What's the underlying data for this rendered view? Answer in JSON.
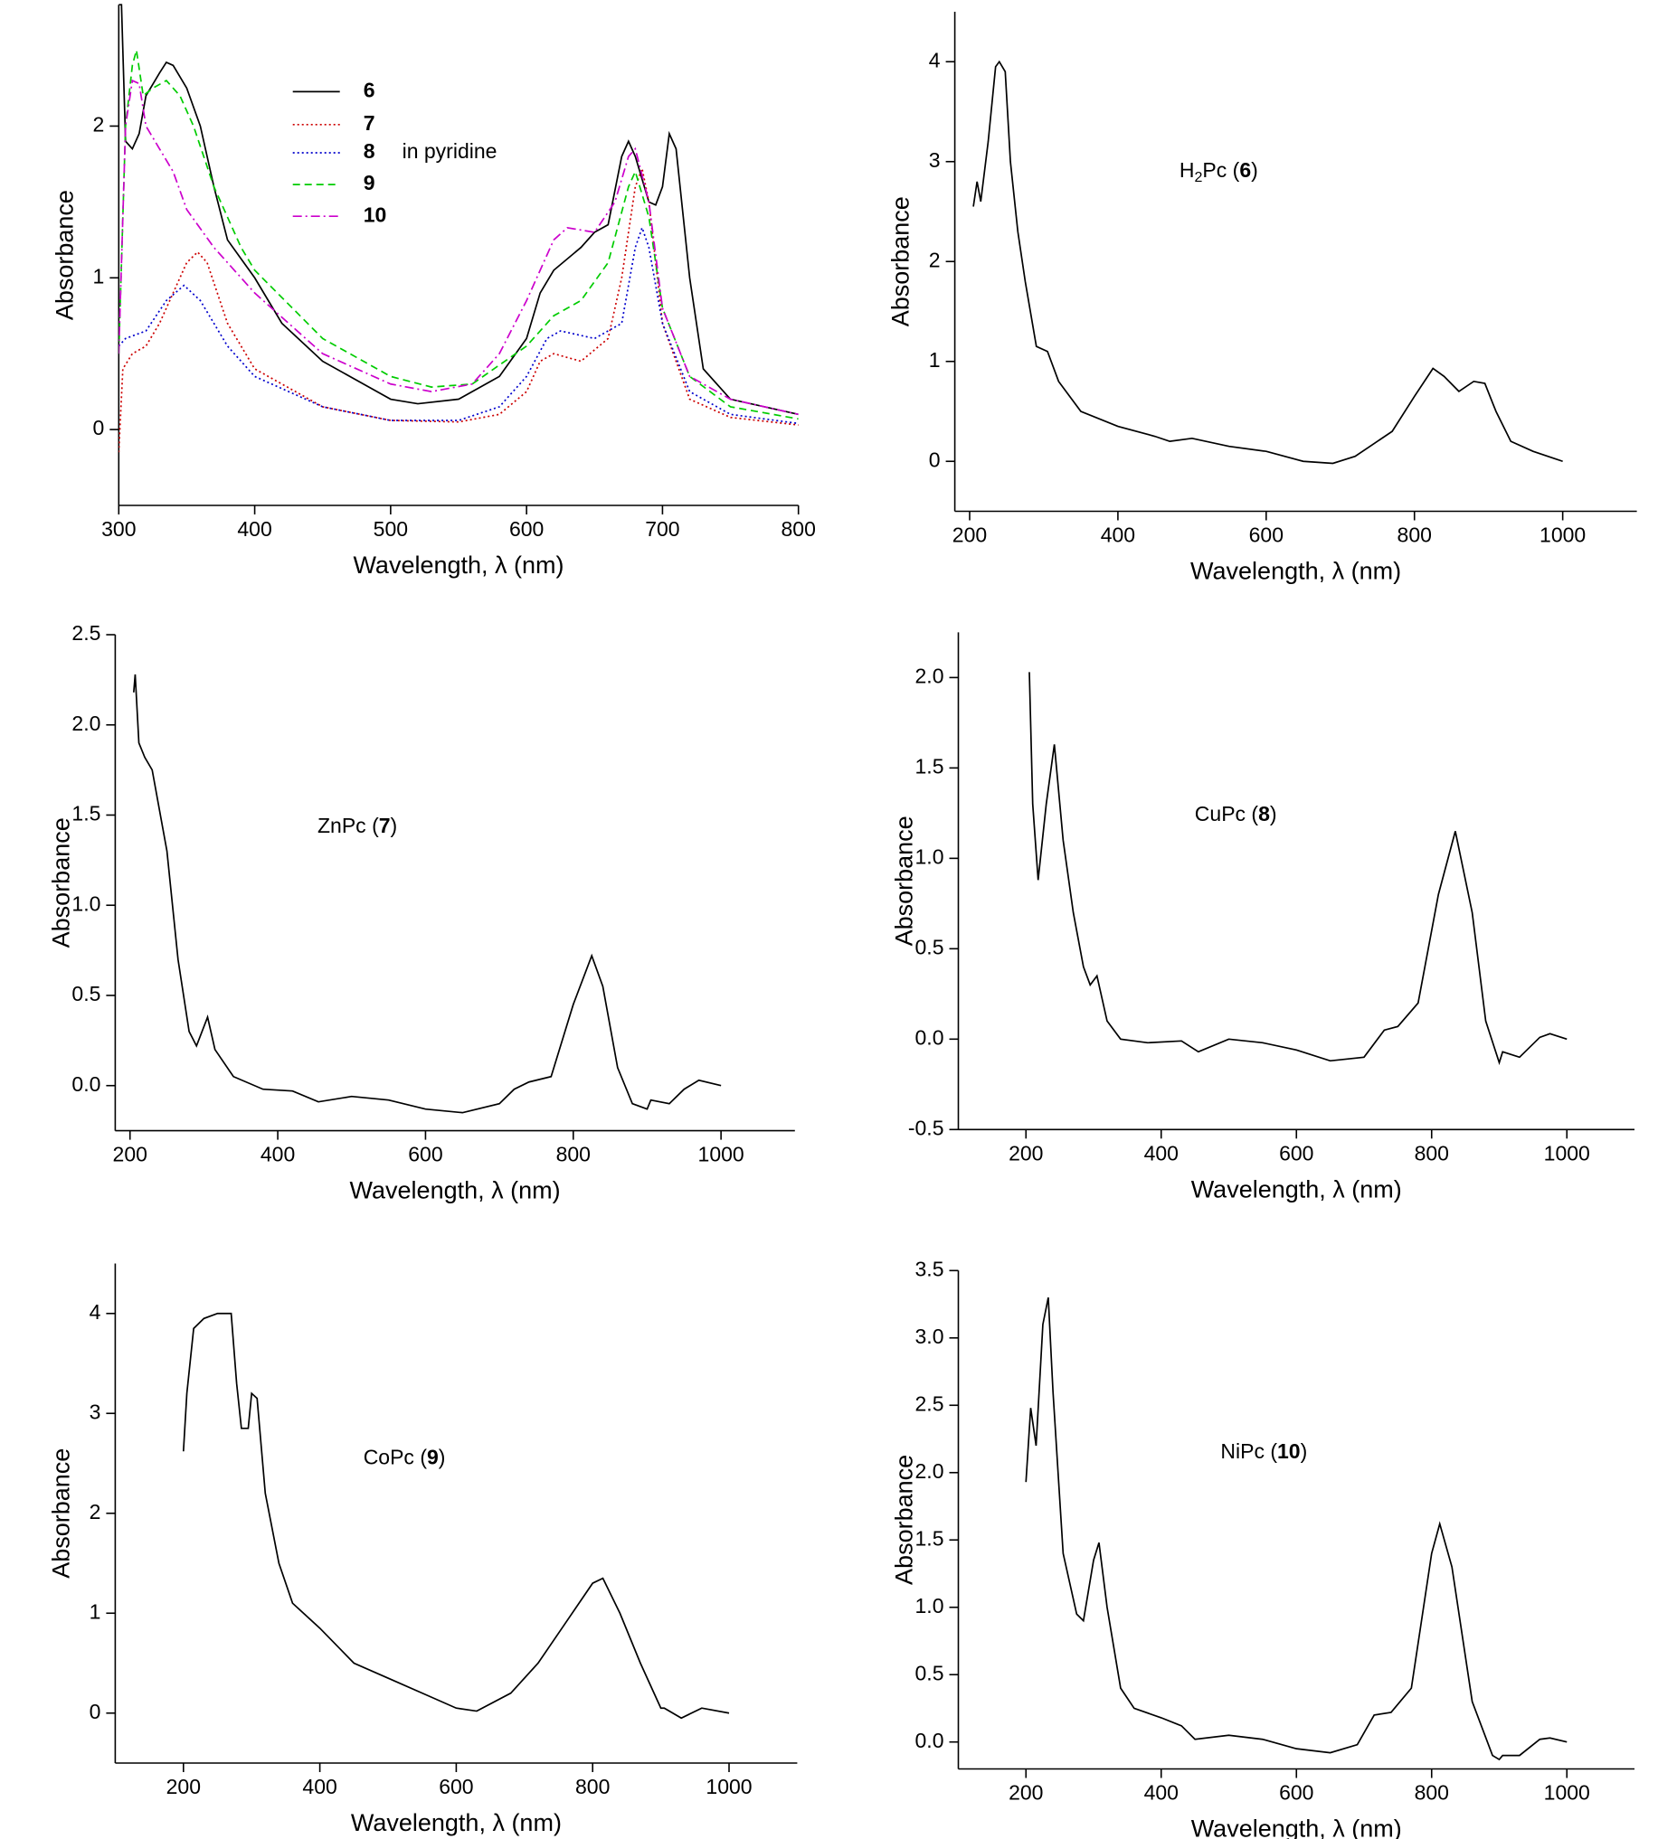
{
  "chart_data": [
    {
      "type": "line",
      "xlabel": "Wavelength, λ (nm)",
      "ylabel": "Absorbance",
      "xlim": [
        300,
        800
      ],
      "ylim": [
        -0.5,
        2.8
      ],
      "xticks": [
        300,
        400,
        500,
        600,
        700,
        800
      ],
      "yticks": [
        0,
        1,
        2
      ],
      "legend_note": "in pyridine",
      "series": [
        {
          "name": "6",
          "color": "#000000",
          "style": "solid",
          "x": [
            300,
            302,
            305,
            310,
            315,
            320,
            330,
            335,
            340,
            350,
            360,
            370,
            380,
            400,
            420,
            450,
            480,
            500,
            520,
            550,
            580,
            600,
            610,
            620,
            640,
            650,
            660,
            670,
            675,
            680,
            690,
            695,
            700,
            705,
            710,
            720,
            730,
            750,
            800
          ],
          "values": [
            2.8,
            2.8,
            1.9,
            1.85,
            1.95,
            2.2,
            2.35,
            2.42,
            2.4,
            2.25,
            2.0,
            1.6,
            1.25,
            1.0,
            0.7,
            0.45,
            0.3,
            0.2,
            0.17,
            0.2,
            0.35,
            0.6,
            0.9,
            1.05,
            1.2,
            1.3,
            1.35,
            1.8,
            1.9,
            1.8,
            1.5,
            1.48,
            1.6,
            1.95,
            1.85,
            1.0,
            0.4,
            0.2,
            0.1
          ]
        },
        {
          "name": "7",
          "color": "#cc0000",
          "style": "dot",
          "x": [
            300,
            303,
            310,
            320,
            330,
            340,
            350,
            358,
            365,
            380,
            400,
            450,
            500,
            550,
            580,
            600,
            610,
            620,
            640,
            660,
            670,
            680,
            685,
            690,
            700,
            720,
            750,
            800
          ],
          "values": [
            -0.15,
            0.4,
            0.5,
            0.55,
            0.7,
            0.9,
            1.1,
            1.17,
            1.1,
            0.7,
            0.4,
            0.15,
            0.06,
            0.05,
            0.1,
            0.25,
            0.45,
            0.5,
            0.45,
            0.6,
            1.0,
            1.6,
            1.72,
            1.5,
            0.7,
            0.2,
            0.08,
            0.03
          ]
        },
        {
          "name": "8",
          "color": "#0000cc",
          "style": "dot",
          "x": [
            300,
            305,
            320,
            335,
            348,
            360,
            380,
            400,
            450,
            500,
            550,
            580,
            600,
            615,
            625,
            650,
            670,
            680,
            685,
            690,
            700,
            720,
            750,
            800
          ],
          "values": [
            0.55,
            0.6,
            0.65,
            0.85,
            0.95,
            0.85,
            0.55,
            0.35,
            0.15,
            0.06,
            0.06,
            0.15,
            0.35,
            0.6,
            0.65,
            0.6,
            0.7,
            1.2,
            1.33,
            1.2,
            0.7,
            0.25,
            0.1,
            0.04
          ]
        },
        {
          "name": "9",
          "color": "#00cc00",
          "style": "dash",
          "x": [
            300,
            305,
            310,
            313,
            318,
            325,
            335,
            345,
            355,
            370,
            390,
            400,
            450,
            500,
            530,
            560,
            600,
            620,
            640,
            660,
            675,
            680,
            690,
            700,
            720,
            750,
            800
          ],
          "values": [
            0.5,
            2.0,
            2.4,
            2.5,
            2.2,
            2.25,
            2.3,
            2.2,
            2.0,
            1.6,
            1.2,
            1.05,
            0.6,
            0.35,
            0.28,
            0.3,
            0.55,
            0.75,
            0.85,
            1.1,
            1.6,
            1.7,
            1.4,
            0.8,
            0.35,
            0.15,
            0.07
          ]
        },
        {
          "name": "10",
          "color": "#cc00cc",
          "style": "dashdot",
          "x": [
            300,
            305,
            310,
            315,
            320,
            330,
            340,
            350,
            370,
            400,
            450,
            500,
            530,
            560,
            580,
            600,
            620,
            630,
            650,
            665,
            675,
            680,
            690,
            700,
            720,
            750,
            800
          ],
          "values": [
            0.5,
            2.0,
            2.3,
            2.28,
            2.0,
            1.85,
            1.7,
            1.45,
            1.2,
            0.9,
            0.5,
            0.3,
            0.25,
            0.3,
            0.5,
            0.85,
            1.25,
            1.33,
            1.3,
            1.5,
            1.8,
            1.85,
            1.5,
            0.8,
            0.35,
            0.2,
            0.1
          ]
        }
      ]
    },
    {
      "type": "line",
      "xlabel": "Wavelength, λ (nm)",
      "ylabel": "Absorbance",
      "xlim": [
        180,
        1100
      ],
      "ylim": [
        -0.5,
        4.5
      ],
      "xticks": [
        200,
        400,
        600,
        800,
        1000
      ],
      "yticks": [
        0,
        1,
        2,
        3,
        4
      ],
      "annotation": {
        "prefix": "H",
        "subscript": "2",
        "text": "Pc (",
        "bold": "6",
        "suffix": ")"
      },
      "series": [
        {
          "color": "#000000",
          "style": "solid",
          "x": [
            205,
            210,
            215,
            225,
            235,
            240,
            248,
            255,
            265,
            275,
            290,
            305,
            320,
            350,
            400,
            450,
            470,
            500,
            550,
            600,
            650,
            690,
            720,
            740,
            770,
            800,
            825,
            840,
            860,
            880,
            895,
            910,
            930,
            960,
            1000
          ],
          "values": [
            2.55,
            2.8,
            2.6,
            3.2,
            3.95,
            4.0,
            3.9,
            3.0,
            2.3,
            1.8,
            1.15,
            1.1,
            0.8,
            0.5,
            0.35,
            0.25,
            0.2,
            0.23,
            0.15,
            0.1,
            0.0,
            -0.02,
            0.05,
            0.15,
            0.3,
            0.65,
            0.93,
            0.85,
            0.7,
            0.8,
            0.78,
            0.5,
            0.2,
            0.1,
            0.0
          ]
        }
      ]
    },
    {
      "type": "line",
      "xlabel": "Wavelength,  λ (nm)",
      "ylabel": "Absorbance",
      "xlim": [
        180,
        1100
      ],
      "ylim": [
        -0.25,
        2.5
      ],
      "xticks": [
        200,
        400,
        600,
        800,
        1000
      ],
      "yticks": [
        {
          "value": 0,
          "label": "0.0"
        },
        0.5,
        {
          "value": 1,
          "label": "1.0"
        },
        1.5,
        {
          "value": 2,
          "label": "2.0"
        },
        2.5
      ],
      "annotation": {
        "text": "ZnPc (",
        "bold": "7",
        "suffix": ")"
      },
      "series": [
        {
          "color": "#000000",
          "style": "solid",
          "x": [
            205,
            207,
            212,
            220,
            230,
            250,
            265,
            280,
            290,
            305,
            315,
            340,
            380,
            420,
            455,
            500,
            550,
            600,
            650,
            700,
            720,
            740,
            770,
            800,
            825,
            840,
            860,
            880,
            900,
            905,
            930,
            950,
            970,
            1000
          ],
          "values": [
            2.18,
            2.28,
            1.9,
            1.82,
            1.75,
            1.3,
            0.7,
            0.3,
            0.22,
            0.38,
            0.2,
            0.05,
            -0.02,
            -0.03,
            -0.09,
            -0.06,
            -0.08,
            -0.13,
            -0.15,
            -0.1,
            -0.02,
            0.02,
            0.05,
            0.45,
            0.72,
            0.55,
            0.1,
            -0.1,
            -0.13,
            -0.08,
            -0.1,
            -0.02,
            0.03,
            0.0
          ]
        }
      ]
    },
    {
      "type": "line",
      "xlabel": "Wavelength, λ (nm)",
      "ylabel": "Absorbance",
      "xlim": [
        100,
        1100
      ],
      "ylim": [
        -0.5,
        2.25
      ],
      "xticks": [
        200,
        400,
        600,
        800,
        1000
      ],
      "yticks": [
        -0.5,
        {
          "value": 0,
          "label": "0.0"
        },
        0.5,
        {
          "value": 1,
          "label": "1.0"
        },
        1.5,
        {
          "value": 2,
          "label": "2.0"
        }
      ],
      "annotation": {
        "text": "CuPc (",
        "bold": "8",
        "suffix": ")"
      },
      "series": [
        {
          "color": "#000000",
          "style": "solid",
          "x": [
            205,
            210,
            218,
            230,
            242,
            255,
            270,
            285,
            295,
            305,
            320,
            340,
            380,
            430,
            455,
            500,
            550,
            600,
            650,
            700,
            730,
            750,
            780,
            810,
            835,
            860,
            880,
            900,
            905,
            930,
            960,
            975,
            1000
          ],
          "values": [
            2.03,
            1.3,
            0.88,
            1.3,
            1.63,
            1.1,
            0.7,
            0.4,
            0.3,
            0.35,
            0.1,
            0.0,
            -0.02,
            -0.01,
            -0.07,
            0.0,
            -0.02,
            -0.06,
            -0.12,
            -0.1,
            0.05,
            0.07,
            0.2,
            0.8,
            1.15,
            0.7,
            0.1,
            -0.13,
            -0.07,
            -0.1,
            0.01,
            0.03,
            0.0
          ]
        }
      ]
    },
    {
      "type": "line",
      "xlabel": "Wavelength, λ (nm)",
      "ylabel": "Absorbance",
      "xlim": [
        100,
        1100
      ],
      "ylim": [
        -0.5,
        4.5
      ],
      "xticks": [
        200,
        400,
        600,
        800,
        1000
      ],
      "yticks": [
        0,
        1,
        2,
        3,
        4
      ],
      "annotation": {
        "text": "CoPc (",
        "bold": "9",
        "suffix": ")"
      },
      "series": [
        {
          "color": "#000000",
          "style": "solid",
          "x": [
            200,
            205,
            215,
            230,
            250,
            270,
            278,
            285,
            295,
            300,
            308,
            320,
            340,
            360,
            400,
            450,
            500,
            550,
            600,
            630,
            680,
            720,
            760,
            800,
            815,
            840,
            870,
            900,
            905,
            930,
            960,
            1000
          ],
          "values": [
            2.62,
            3.2,
            3.85,
            3.95,
            4.0,
            4.0,
            3.3,
            2.85,
            2.85,
            3.2,
            3.15,
            2.2,
            1.5,
            1.1,
            0.85,
            0.5,
            0.35,
            0.2,
            0.05,
            0.02,
            0.2,
            0.5,
            0.9,
            1.3,
            1.35,
            1.0,
            0.5,
            0.05,
            0.05,
            -0.05,
            0.05,
            0.0
          ]
        }
      ]
    },
    {
      "type": "line",
      "xlabel": "Wavelength, λ (nm)",
      "ylabel": "Absorbance",
      "xlim": [
        100,
        1100
      ],
      "ylim": [
        -0.2,
        3.5
      ],
      "xticks": [
        200,
        400,
        600,
        800,
        1000
      ],
      "yticks": [
        {
          "value": 0,
          "label": "0.0"
        },
        0.5,
        {
          "value": 1,
          "label": "1.0"
        },
        1.5,
        {
          "value": 2,
          "label": "2.0"
        },
        2.5,
        {
          "value": 3,
          "label": "3.0"
        },
        3.5
      ],
      "annotation": {
        "text": "NiPc (",
        "bold": "10",
        "suffix": ")"
      },
      "series": [
        {
          "color": "#000000",
          "style": "solid",
          "x": [
            200,
            207,
            215,
            225,
            233,
            240,
            255,
            275,
            285,
            300,
            308,
            320,
            340,
            360,
            400,
            430,
            450,
            500,
            550,
            600,
            650,
            690,
            715,
            740,
            770,
            800,
            812,
            830,
            860,
            890,
            900,
            905,
            930,
            960,
            975,
            1000
          ],
          "values": [
            1.93,
            2.48,
            2.2,
            3.1,
            3.3,
            2.6,
            1.4,
            0.95,
            0.9,
            1.35,
            1.48,
            1.0,
            0.4,
            0.25,
            0.18,
            0.12,
            0.02,
            0.05,
            0.02,
            -0.05,
            -0.08,
            -0.02,
            0.2,
            0.22,
            0.4,
            1.4,
            1.62,
            1.3,
            0.3,
            -0.1,
            -0.13,
            -0.1,
            -0.1,
            0.02,
            0.03,
            0.0
          ]
        }
      ]
    }
  ]
}
